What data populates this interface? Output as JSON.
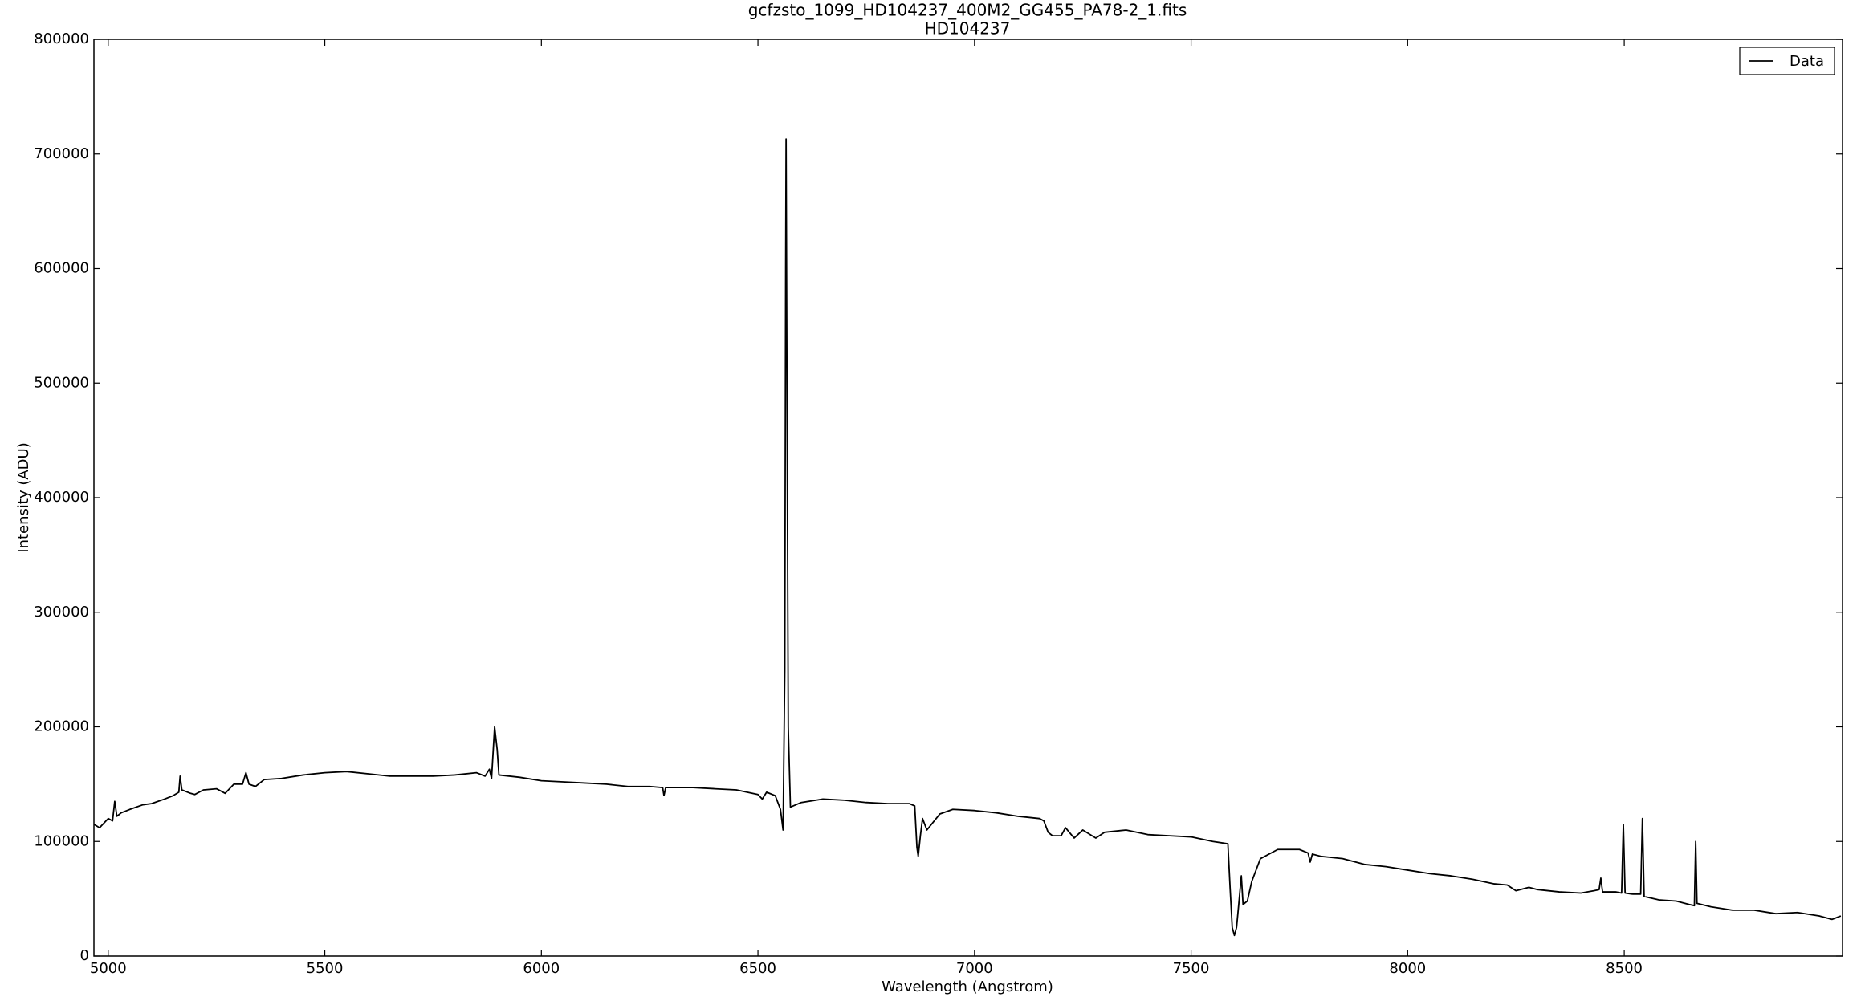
{
  "chart_data": {
    "type": "line",
    "title": "gcfzsto_1099_HD104237_400M2_GG455_PA78-2_1.fits",
    "subtitle": "HD104237",
    "x_label": "Wavelength (Angstrom)",
    "y_label": "Intensity (ADU)",
    "xlim": [
      4967,
      9004
    ],
    "ylim": [
      0,
      800000
    ],
    "xticks": [
      5000,
      5500,
      6000,
      6500,
      7000,
      7500,
      8000,
      8500
    ],
    "yticks": [
      0,
      100000,
      200000,
      300000,
      400000,
      500000,
      600000,
      700000,
      800000
    ],
    "grid": false,
    "legend": "upper right",
    "x": [
      4967,
      4980,
      5000,
      5010,
      5015,
      5020,
      5030,
      5050,
      5080,
      5100,
      5130,
      5150,
      5163,
      5166,
      5170,
      5190,
      5200,
      5220,
      5250,
      5270,
      5290,
      5310,
      5318,
      5325,
      5340,
      5360,
      5400,
      5450,
      5500,
      5550,
      5600,
      5650,
      5700,
      5750,
      5800,
      5850,
      5870,
      5880,
      5885,
      5892,
      5898,
      5902,
      5950,
      6000,
      6050,
      6100,
      6150,
      6200,
      6250,
      6280,
      6283,
      6287,
      6350,
      6400,
      6450,
      6500,
      6510,
      6520,
      6540,
      6552,
      6558,
      6562,
      6564,
      6565,
      6567,
      6570,
      6575,
      6600,
      6650,
      6700,
      6750,
      6800,
      6850,
      6862,
      6867,
      6870,
      6875,
      6880,
      6890,
      6920,
      6950,
      7000,
      7050,
      7100,
      7150,
      7160,
      7170,
      7180,
      7200,
      7210,
      7230,
      7250,
      7280,
      7300,
      7350,
      7400,
      7450,
      7500,
      7550,
      7585,
      7590,
      7595,
      7600,
      7605,
      7610,
      7616,
      7620,
      7630,
      7640,
      7660,
      7700,
      7750,
      7770,
      7775,
      7780,
      7800,
      7850,
      7900,
      7950,
      8000,
      8050,
      8100,
      8150,
      8200,
      8230,
      8250,
      8280,
      8300,
      8350,
      8400,
      8430,
      8442,
      8446,
      8450,
      8480,
      8494,
      8498,
      8502,
      8520,
      8538,
      8542,
      8546,
      8580,
      8620,
      8650,
      8662,
      8665,
      8668,
      8700,
      8750,
      8800,
      8850,
      8900,
      8950,
      8980,
      9000
    ],
    "series": [
      {
        "name": "Data",
        "color": "#000000",
        "values": [
          115000,
          112000,
          120000,
          118000,
          135000,
          122000,
          125000,
          128000,
          132000,
          133000,
          137000,
          140000,
          143000,
          157000,
          145000,
          142000,
          141000,
          145000,
          146000,
          142000,
          150000,
          150000,
          160000,
          150000,
          148000,
          154000,
          155000,
          158000,
          160000,
          161000,
          159000,
          157000,
          157000,
          157000,
          158000,
          160000,
          157000,
          163000,
          155000,
          200000,
          180000,
          158000,
          156000,
          153000,
          152000,
          151000,
          150000,
          148000,
          148000,
          147000,
          140000,
          147000,
          147000,
          146000,
          145000,
          141000,
          137000,
          143000,
          140000,
          128000,
          110000,
          250000,
          600000,
          713000,
          500000,
          200000,
          130000,
          134000,
          137000,
          136000,
          134000,
          133000,
          133000,
          131000,
          95000,
          87000,
          105000,
          120000,
          110000,
          124000,
          128000,
          127000,
          125000,
          122000,
          120000,
          118000,
          108000,
          105000,
          105000,
          112000,
          103000,
          110000,
          103000,
          108000,
          110000,
          106000,
          105000,
          104000,
          100000,
          98000,
          60000,
          25000,
          18000,
          25000,
          45000,
          70000,
          45000,
          48000,
          65000,
          85000,
          93000,
          93000,
          90000,
          82000,
          89000,
          87000,
          85000,
          80000,
          78000,
          75000,
          72000,
          70000,
          67000,
          63000,
          62000,
          57000,
          60000,
          58000,
          56000,
          55000,
          57000,
          58000,
          68000,
          56000,
          56000,
          55000,
          115000,
          55000,
          54000,
          54000,
          120000,
          52000,
          49000,
          48000,
          45000,
          44000,
          100000,
          46000,
          43000,
          40000,
          40000,
          37000,
          38000,
          35000,
          32000,
          35000
        ]
      }
    ]
  }
}
